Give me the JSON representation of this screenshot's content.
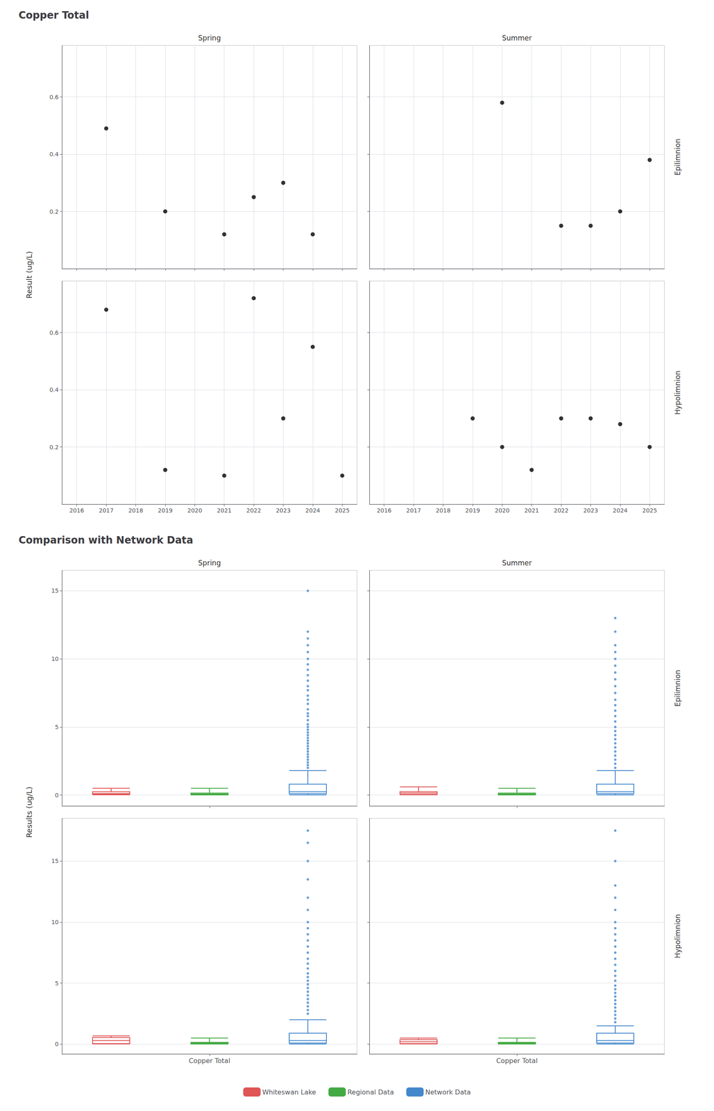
{
  "chart_data": [
    {
      "type": "scatter",
      "title": "Copper Total",
      "y_label": "Result (ug/L)",
      "color": "black",
      "columns": [
        "Spring",
        "Summer"
      ],
      "rows": [
        "Epilimnion",
        "Hypolimnion"
      ],
      "panels": [
        {
          "column": "Spring",
          "row": "Epilimnion",
          "x": [
            2017,
            2019,
            2021,
            2022,
            2023,
            2024
          ],
          "values": [
            0.49,
            0.2,
            0.12,
            0.25,
            0.3,
            0.12
          ]
        },
        {
          "column": "Summer",
          "row": "Epilimnion",
          "x": [
            2020,
            2022,
            2023,
            2024,
            2025
          ],
          "values": [
            0.58,
            0.15,
            0.15,
            0.2,
            0.38
          ]
        },
        {
          "column": "Spring",
          "row": "Hypolimnion",
          "x": [
            2017,
            2019,
            2021,
            2022,
            2023,
            2024,
            2025
          ],
          "values": [
            0.68,
            0.12,
            0.1,
            0.72,
            0.3,
            0.55,
            0.1
          ]
        },
        {
          "column": "Summer",
          "row": "Hypolimnion",
          "x": [
            2019,
            2020,
            2021,
            2022,
            2023,
            2024,
            2025
          ],
          "values": [
            0.3,
            0.2,
            0.12,
            0.3,
            0.3,
            0.28,
            0.2
          ]
        }
      ],
      "xlim": [
        2015.5,
        2025.5
      ],
      "xticks": [
        2016,
        2017,
        2018,
        2019,
        2020,
        2021,
        2022,
        2023,
        2024,
        2025
      ],
      "ylim": [
        0.0,
        0.78
      ],
      "yticks": [
        0.2,
        0.4,
        0.6
      ],
      "grid": true
    },
    {
      "type": "box",
      "title": "Comparison with Network Data",
      "y_label": "Results (ug/L)",
      "categories": [
        "Copper Total"
      ],
      "columns": [
        "Spring",
        "Summer"
      ],
      "rows": [
        "Epilimnion",
        "Hypolimnion"
      ],
      "series": [
        {
          "name": "Whiteswan Lake",
          "color": "#e05555"
        },
        {
          "name": "Regional Data",
          "color": "#44aa44"
        },
        {
          "name": "Network Data",
          "color": "#4488cc"
        }
      ],
      "panels": [
        {
          "column": "Spring",
          "row": "Epilimnion",
          "ylim": [
            -0.8,
            16.5
          ],
          "values": [
            {
              "q1": 0.05,
              "median": 0.12,
              "q3": 0.25,
              "whislo": 0.02,
              "whishi": 0.5,
              "fliers": []
            },
            {
              "q1": 0.03,
              "median": 0.08,
              "q3": 0.15,
              "whislo": 0.01,
              "whishi": 0.5,
              "fliers": []
            },
            {
              "q1": 0.1,
              "median": 0.25,
              "q3": 0.8,
              "whislo": 0.01,
              "whishi": 1.8,
              "fliers": [
                2.0,
                2.2,
                2.4,
                2.6,
                2.8,
                3.0,
                3.2,
                3.4,
                3.6,
                3.8,
                4.0,
                4.2,
                4.4,
                4.6,
                4.8,
                5.0,
                5.2,
                5.5,
                5.8,
                6.0,
                6.3,
                6.7,
                7.0,
                7.3,
                7.7,
                8.0,
                8.4,
                8.8,
                9.2,
                9.6,
                10.0,
                10.5,
                11.0,
                11.5,
                12.0,
                15.0
              ]
            }
          ]
        },
        {
          "column": "Summer",
          "row": "Epilimnion",
          "ylim": [
            -0.8,
            16.5
          ],
          "values": [
            {
              "q1": 0.05,
              "median": 0.15,
              "q3": 0.25,
              "whislo": 0.02,
              "whishi": 0.6,
              "fliers": []
            },
            {
              "q1": 0.03,
              "median": 0.08,
              "q3": 0.15,
              "whislo": 0.01,
              "whishi": 0.5,
              "fliers": []
            },
            {
              "q1": 0.1,
              "median": 0.25,
              "q3": 0.8,
              "whislo": 0.01,
              "whishi": 1.8,
              "fliers": [
                2.0,
                2.3,
                2.6,
                2.9,
                3.2,
                3.5,
                3.8,
                4.1,
                4.4,
                4.7,
                5.0,
                5.4,
                5.8,
                6.2,
                6.6,
                7.0,
                7.5,
                8.0,
                8.5,
                9.0,
                9.5,
                10.0,
                10.5,
                11.0,
                12.0,
                13.0
              ]
            }
          ]
        },
        {
          "column": "Spring",
          "row": "Hypolimnion",
          "ylim": [
            -0.8,
            18.5
          ],
          "values": [
            {
              "q1": 0.05,
              "median": 0.3,
              "q3": 0.55,
              "whislo": 0.02,
              "whishi": 0.68,
              "fliers": []
            },
            {
              "q1": 0.03,
              "median": 0.08,
              "q3": 0.15,
              "whislo": 0.01,
              "whishi": 0.5,
              "fliers": []
            },
            {
              "q1": 0.1,
              "median": 0.3,
              "q3": 0.9,
              "whislo": 0.01,
              "whishi": 2.0,
              "fliers": [
                2.5,
                2.8,
                3.1,
                3.4,
                3.7,
                4.0,
                4.3,
                4.6,
                4.9,
                5.2,
                5.5,
                5.8,
                6.2,
                6.6,
                7.0,
                7.5,
                8.0,
                8.5,
                9.0,
                9.5,
                10.0,
                11.0,
                12.0,
                13.5,
                15.0,
                16.5,
                17.5
              ]
            }
          ]
        },
        {
          "column": "Summer",
          "row": "Hypolimnion",
          "ylim": [
            -0.8,
            18.5
          ],
          "values": [
            {
              "q1": 0.05,
              "median": 0.2,
              "q3": 0.38,
              "whislo": 0.02,
              "whishi": 0.5,
              "fliers": []
            },
            {
              "q1": 0.03,
              "median": 0.08,
              "q3": 0.15,
              "whislo": 0.01,
              "whishi": 0.5,
              "fliers": []
            },
            {
              "q1": 0.1,
              "median": 0.3,
              "q3": 0.9,
              "whislo": 0.01,
              "whishi": 1.5,
              "fliers": [
                1.8,
                2.1,
                2.4,
                2.7,
                3.0,
                3.3,
                3.6,
                3.9,
                4.2,
                4.5,
                4.8,
                5.2,
                5.6,
                6.0,
                6.5,
                7.0,
                7.5,
                8.0,
                8.5,
                9.0,
                9.5,
                10.0,
                11.0,
                12.0,
                13.0,
                15.0,
                17.5
              ]
            }
          ]
        }
      ],
      "yticks": [
        0,
        5,
        10,
        15
      ],
      "grid": true,
      "legend": "bottom"
    }
  ]
}
